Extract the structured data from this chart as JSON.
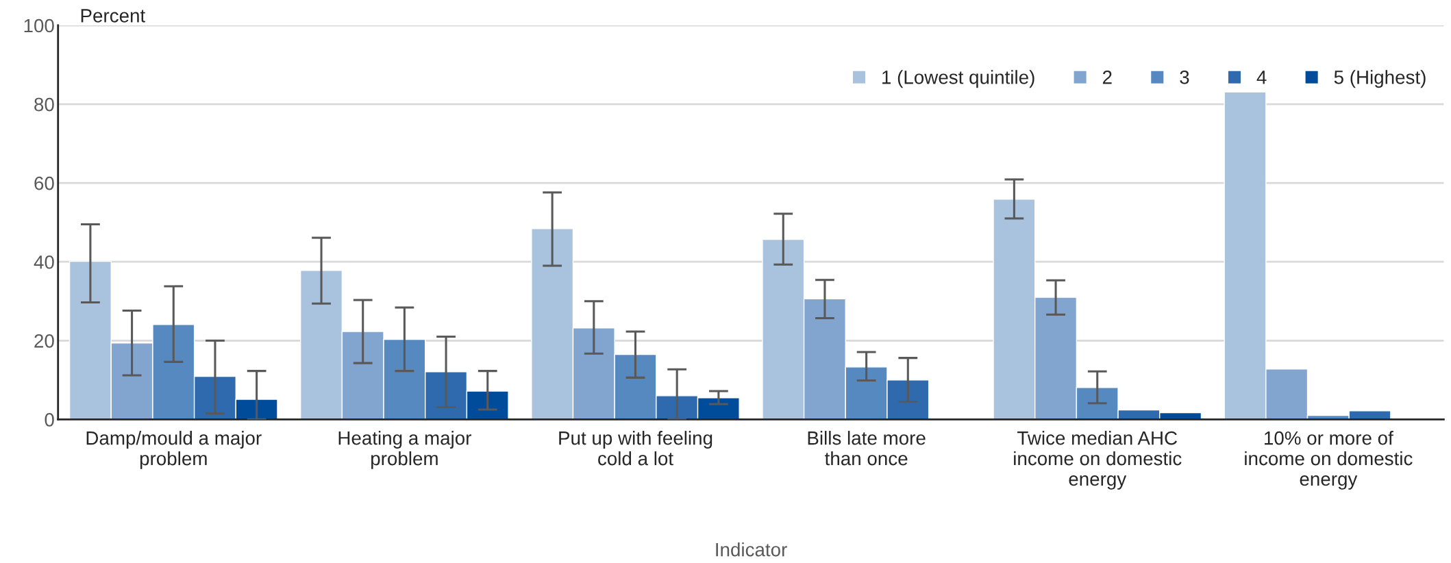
{
  "chart_data": {
    "type": "bar",
    "ylabel": "Percent",
    "xlabel": "Indicator",
    "categories": [
      "Damp/mould a major problem",
      "Heating a major problem",
      "Put up with feeling cold a lot",
      "Bills late more than once",
      "Twice median AHC income on domestic energy",
      "10% or more of income on domestic energy"
    ],
    "series": [
      {
        "name": "1 (Lowest quintile)",
        "color": "#a9c2de",
        "values": [
          40.1,
          37.8,
          48.4,
          45.7,
          55.9,
          83.1
        ],
        "errors": [
          [
            29.7,
            49.5
          ],
          [
            29.4,
            46.1
          ],
          [
            39.0,
            57.6
          ],
          [
            39.3,
            52.2
          ],
          [
            51.0,
            60.9
          ],
          null
        ]
      },
      {
        "name": "2",
        "color": "#81a5cf",
        "values": [
          19.4,
          22.3,
          23.2,
          30.6,
          31.0,
          12.8
        ],
        "errors": [
          [
            11.2,
            27.6
          ],
          [
            14.3,
            30.3
          ],
          [
            16.7,
            30.0
          ],
          [
            25.7,
            35.4
          ],
          [
            26.6,
            35.3
          ],
          null
        ]
      },
      {
        "name": "3",
        "color": "#5689c0",
        "values": [
          24.1,
          20.3,
          16.5,
          13.3,
          8.1,
          1.0
        ],
        "errors": [
          [
            14.6,
            33.8
          ],
          [
            12.3,
            28.4
          ],
          [
            10.6,
            22.3
          ],
          [
            9.9,
            17.1
          ],
          [
            4.1,
            12.2
          ],
          null
        ]
      },
      {
        "name": "4",
        "color": "#2e6aad",
        "values": [
          10.9,
          12.1,
          6.0,
          10.0,
          2.4,
          2.2
        ],
        "errors": [
          [
            1.5,
            20.0
          ],
          [
            3.1,
            21.0
          ],
          [
            0,
            12.7
          ],
          [
            4.5,
            15.6
          ],
          null,
          null
        ]
      },
      {
        "name": "5 (Highest)",
        "color": "#004c9b",
        "values": [
          5.1,
          7.2,
          5.5,
          null,
          1.7,
          null
        ],
        "errors": [
          [
            0,
            12.3
          ],
          [
            2.5,
            12.3
          ],
          [
            3.9,
            7.2
          ],
          null,
          null,
          null
        ]
      }
    ],
    "ylim": [
      0,
      100
    ],
    "yticks": [
      0,
      20,
      40,
      60,
      80,
      100
    ],
    "grid": "y",
    "legend": "top right"
  }
}
